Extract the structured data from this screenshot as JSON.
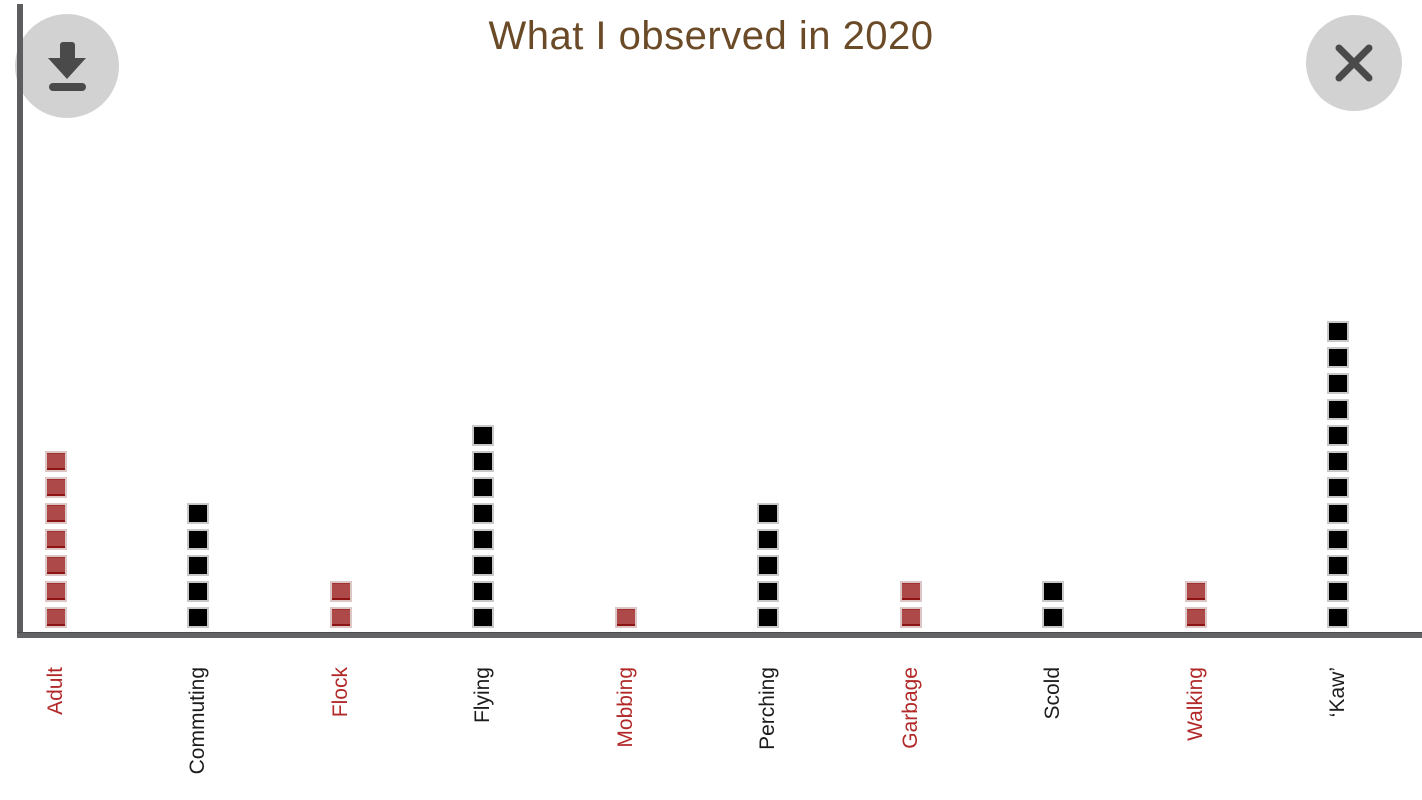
{
  "header": {
    "title": "What I observed in 2020"
  },
  "toolbar": {
    "download_label": "Download chart",
    "close_label": "Close"
  },
  "icons": {
    "download_button": "download-icon",
    "close_button": "close-icon"
  },
  "colors": {
    "title_text": "#6b4a28",
    "axis_gray": "#5d5d5f",
    "button_bg": "#d2d2d2",
    "button_icon": "#4a4a4a",
    "red_fill": "#ae4949",
    "red_border": "#8e1414",
    "black_fill": "#000000",
    "black_border": "#c9c9c9",
    "red_label": "#b22929",
    "black_label": "#1c1c1c"
  },
  "chart_data": {
    "type": "bar",
    "variant": "unit-square-pictograph",
    "title": "What I observed in 2020",
    "categories": [
      "Adult",
      "Commuting",
      "Flock",
      "Flying",
      "Mobbing",
      "Perching",
      "Garbage",
      "Scold",
      "Walking",
      "‘Kaw’"
    ],
    "values": [
      7,
      5,
      2,
      8,
      1,
      5,
      2,
      2,
      2,
      12
    ],
    "unit_colors": [
      "red",
      "black",
      "red",
      "black",
      "red",
      "black",
      "red",
      "black",
      "red",
      "black"
    ],
    "label_colors": [
      "red",
      "black",
      "red",
      "black",
      "red",
      "black",
      "red",
      "black",
      "red",
      "black"
    ],
    "unit_value": 1,
    "xlabel": "",
    "ylabel": "",
    "ylim": [
      0,
      12
    ],
    "grid": false,
    "legend": false,
    "x_labels_rotated_degrees": 90
  }
}
